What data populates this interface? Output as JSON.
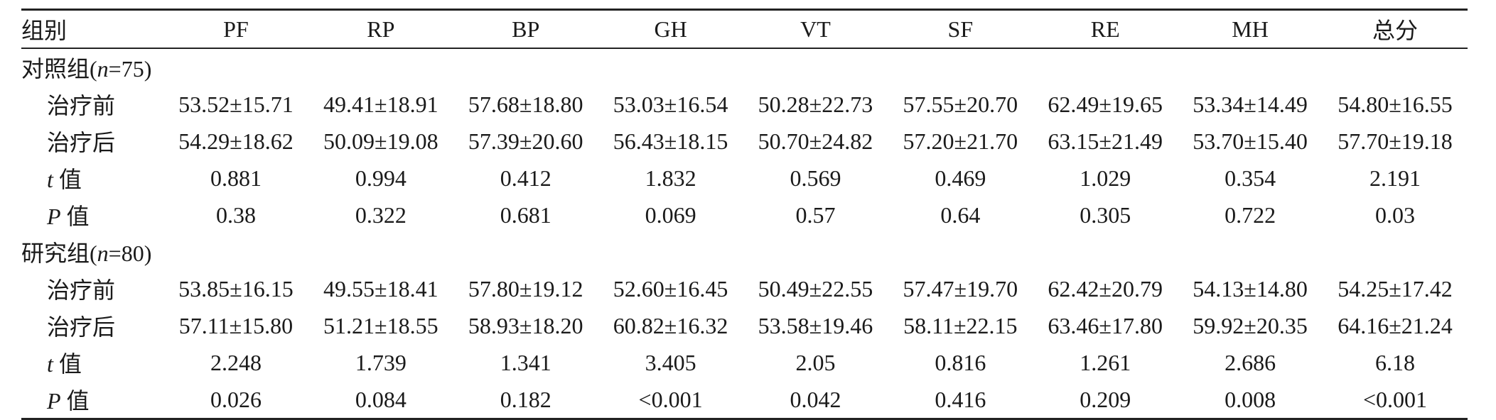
{
  "headers": [
    "组别",
    "PF",
    "RP",
    "BP",
    "GH",
    "VT",
    "SF",
    "RE",
    "MH",
    "总分"
  ],
  "groups": [
    {
      "label_prefix": "对照组(",
      "label_n": "n",
      "label_suffix": "=75)",
      "rows": [
        {
          "label": "治疗前",
          "values": [
            "53.52±15.71",
            "49.41±18.91",
            "57.68±18.80",
            "53.03±16.54",
            "50.28±22.73",
            "57.55±20.70",
            "62.49±19.65",
            "53.34±14.49",
            "54.80±16.55"
          ]
        },
        {
          "label": "治疗后",
          "values": [
            "54.29±18.62",
            "50.09±19.08",
            "57.39±20.60",
            "56.43±18.15",
            "50.70±24.82",
            "57.20±21.70",
            "63.15±21.49",
            "53.70±15.40",
            "57.70±19.18"
          ]
        },
        {
          "label_stat": "t",
          "label": " 值",
          "values": [
            "0.881",
            "0.994",
            "0.412",
            "1.832",
            "0.569",
            "0.469",
            "1.029",
            "0.354",
            "2.191"
          ]
        },
        {
          "label_stat": "P",
          "label": " 值",
          "values": [
            "0.38",
            "0.322",
            "0.681",
            "0.069",
            "0.57",
            "0.64",
            "0.305",
            "0.722",
            "0.03"
          ]
        }
      ]
    },
    {
      "label_prefix": "研究组(",
      "label_n": "n",
      "label_suffix": "=80)",
      "rows": [
        {
          "label": "治疗前",
          "values": [
            "53.85±16.15",
            "49.55±18.41",
            "57.80±19.12",
            "52.60±16.45",
            "50.49±22.55",
            "57.47±19.70",
            "62.42±20.79",
            "54.13±14.80",
            "54.25±17.42"
          ]
        },
        {
          "label": "治疗后",
          "values": [
            "57.11±15.80",
            "51.21±18.55",
            "58.93±18.20",
            "60.82±16.32",
            "53.58±19.46",
            "58.11±22.15",
            "63.46±17.80",
            "59.92±20.35",
            "64.16±21.24"
          ]
        },
        {
          "label_stat": "t",
          "label": " 值",
          "values": [
            "2.248",
            "1.739",
            "1.341",
            "3.405",
            "2.05",
            "0.816",
            "1.261",
            "2.686",
            "6.18"
          ]
        },
        {
          "label_stat": "P",
          "label": " 值",
          "values": [
            "0.026",
            "0.084",
            "0.182",
            "<0.001",
            "0.042",
            "0.416",
            "0.209",
            "0.008",
            "<0.001"
          ]
        }
      ]
    }
  ]
}
